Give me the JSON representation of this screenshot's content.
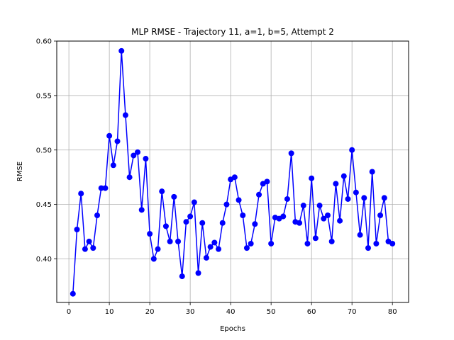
{
  "chart_data": {
    "type": "line",
    "title": "MLP RMSE - Trajectory 11, a=1, b=5, Attempt 2",
    "xlabel": "Epochs",
    "ylabel": "RMSE",
    "xlim": [
      -3,
      84
    ],
    "ylim": [
      0.36,
      0.6
    ],
    "xticks": [
      0,
      10,
      20,
      30,
      40,
      50,
      60,
      70,
      80
    ],
    "yticks": [
      0.4,
      0.45,
      0.5,
      0.55,
      0.6
    ],
    "ytick_labels": [
      "0.40",
      "0.45",
      "0.50",
      "0.55",
      "0.60"
    ],
    "grid": true,
    "color": "#0000ff",
    "series": [
      {
        "name": "RMSE",
        "x": [
          1,
          2,
          3,
          4,
          5,
          6,
          7,
          8,
          9,
          10,
          11,
          12,
          13,
          14,
          15,
          16,
          17,
          18,
          19,
          20,
          21,
          22,
          23,
          24,
          25,
          26,
          27,
          28,
          29,
          30,
          31,
          32,
          33,
          34,
          35,
          36,
          37,
          38,
          39,
          40,
          41,
          42,
          43,
          44,
          45,
          46,
          47,
          48,
          49,
          50,
          51,
          52,
          53,
          54,
          55,
          56,
          57,
          58,
          59,
          60,
          61,
          62,
          63,
          64,
          65,
          66,
          67,
          68,
          69,
          70,
          71,
          72,
          73,
          74,
          75,
          76,
          77,
          78,
          79,
          80
        ],
        "values": [
          0.368,
          0.427,
          0.46,
          0.409,
          0.416,
          0.41,
          0.44,
          0.465,
          0.465,
          0.513,
          0.486,
          0.508,
          0.591,
          0.532,
          0.475,
          0.495,
          0.498,
          0.445,
          0.492,
          0.423,
          0.4,
          0.409,
          0.462,
          0.43,
          0.416,
          0.457,
          0.416,
          0.384,
          0.434,
          0.439,
          0.452,
          0.387,
          0.433,
          0.401,
          0.411,
          0.415,
          0.409,
          0.433,
          0.45,
          0.473,
          0.475,
          0.454,
          0.44,
          0.41,
          0.414,
          0.432,
          0.459,
          0.469,
          0.471,
          0.414,
          0.438,
          0.437,
          0.439,
          0.455,
          0.497,
          0.434,
          0.433,
          0.449,
          0.414,
          0.474,
          0.419,
          0.449,
          0.437,
          0.44,
          0.416,
          0.469,
          0.435,
          0.476,
          0.455,
          0.5,
          0.461,
          0.422,
          0.456,
          0.41,
          0.48,
          0.414,
          0.44,
          0.456,
          0.416,
          0.414
        ]
      }
    ]
  }
}
